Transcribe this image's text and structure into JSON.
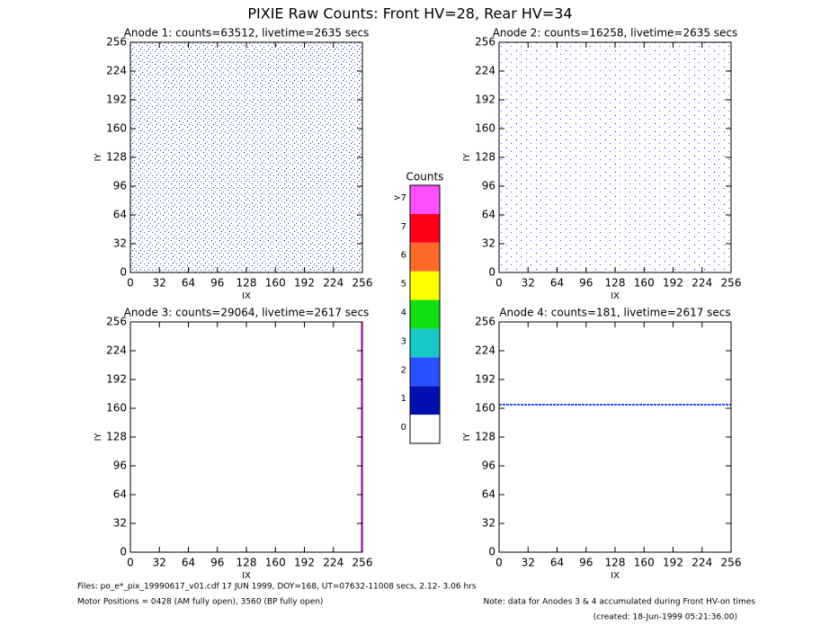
{
  "title": "PIXIE Raw Counts:  Front HV=28, Rear HV=34",
  "chart_data": [
    {
      "type": "heatmap",
      "title": "Anode 1: counts=63512, livetime=2635 secs",
      "x_label": "IX",
      "y_label": "IY",
      "xlim": [
        0,
        256
      ],
      "ylim": [
        0,
        256
      ],
      "xticks": [
        0,
        32,
        64,
        96,
        128,
        160,
        192,
        224,
        256
      ],
      "yticks": [
        0,
        32,
        64,
        96,
        128,
        160,
        192,
        224,
        256
      ]
    },
    {
      "type": "heatmap",
      "title": "Anode 2: counts=16258, livetime=2635 secs",
      "x_label": "IX",
      "y_label": "IY",
      "xlim": [
        0,
        256
      ],
      "ylim": [
        0,
        256
      ],
      "xticks": [
        0,
        32,
        64,
        96,
        128,
        160,
        192,
        224,
        256
      ],
      "yticks": [
        0,
        32,
        64,
        96,
        128,
        160,
        192,
        224,
        256
      ]
    },
    {
      "type": "heatmap",
      "title": "Anode 3: counts=29064, livetime=2617 secs",
      "x_label": "IX",
      "y_label": "IY",
      "xlim": [
        0,
        256
      ],
      "ylim": [
        0,
        256
      ],
      "xticks": [
        0,
        32,
        64,
        96,
        128,
        160,
        192,
        224,
        256
      ],
      "yticks": [
        0,
        32,
        64,
        96,
        128,
        160,
        192,
        224,
        256
      ]
    },
    {
      "type": "heatmap",
      "title": "Anode 4: counts=181, livetime=2617 secs",
      "x_label": "IX",
      "y_label": "IY",
      "xlim": [
        0,
        256
      ],
      "ylim": [
        0,
        256
      ],
      "xticks": [
        0,
        32,
        64,
        96,
        128,
        160,
        192,
        224,
        256
      ],
      "yticks": [
        0,
        32,
        64,
        96,
        128,
        160,
        192,
        224,
        256
      ]
    }
  ],
  "colorbar": {
    "title": "Counts",
    "ticks": [
      0,
      1,
      2,
      3,
      4,
      5,
      6,
      7,
      {
        "value": 8,
        "label": ">7"
      }
    ],
    "colors": [
      "#ffffff",
      "#0010b0",
      "#2850ff",
      "#18c8c8",
      "#10e010",
      "#ffff00",
      "#ff6a28",
      "#ff0018",
      "#ff50ff"
    ]
  },
  "footer": {
    "files": "Files: po_e*_pix_19990617_v01.cdf    17 JUN 1999, DOY=168, UT=07632-11008 secs,  2.12- 3.06 hrs",
    "motor": "Motor Positions = 0428 (AM fully open), 3560 (BP fully open)",
    "note": "Note: data for Anodes 3 & 4 accumulated during Front HV-on times",
    "created": "(created: 18-Jun-1999 05:21:36.00)"
  }
}
